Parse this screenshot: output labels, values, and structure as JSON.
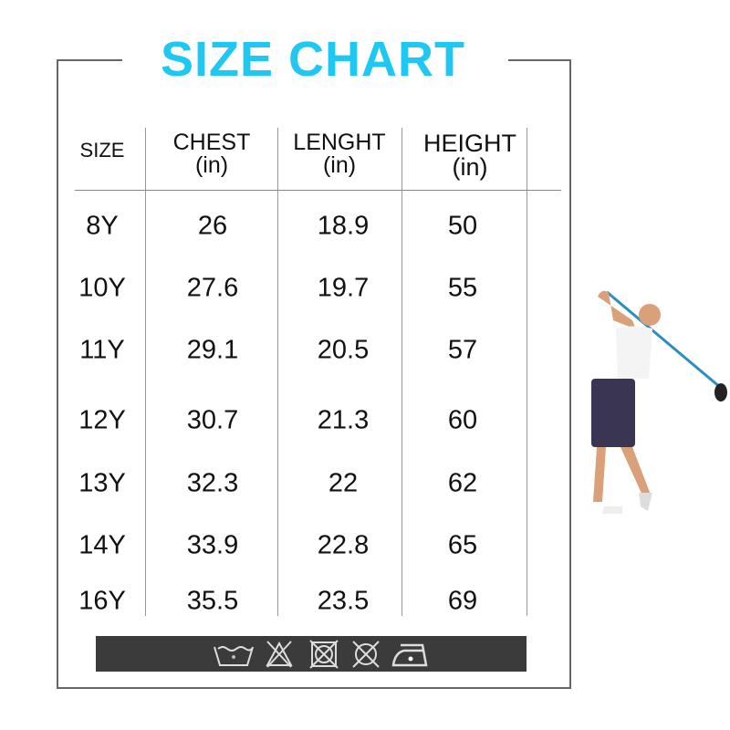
{
  "title": "SIZE CHART",
  "columns": [
    {
      "label": "SIZE",
      "unit": ""
    },
    {
      "label": "CHEST",
      "unit": "(in)"
    },
    {
      "label": "LENGHT",
      "unit": "(in)"
    },
    {
      "label": "HEIGHT",
      "unit": "(in)"
    }
  ],
  "rows": [
    [
      "8Y",
      "26",
      "18.9",
      "50"
    ],
    [
      "10Y",
      "27.6",
      "19.7",
      "55"
    ],
    [
      "11Y",
      "29.1",
      "20.5",
      "57"
    ],
    [
      "12Y",
      "30.7",
      "21.3",
      "60"
    ],
    [
      "13Y",
      "32.3",
      "22",
      "62"
    ],
    [
      "14Y",
      "33.9",
      "22.8",
      "65"
    ],
    [
      "16Y",
      "35.5",
      "23.5",
      "69"
    ]
  ],
  "care_icons": [
    "wash-30-icon",
    "do-not-bleach-icon",
    "do-not-tumble-dry-icon",
    "do-not-dry-clean-icon",
    "iron-low-icon"
  ],
  "colors": {
    "title": "#1ec8f2",
    "care_bar": "#3b3b3b"
  }
}
